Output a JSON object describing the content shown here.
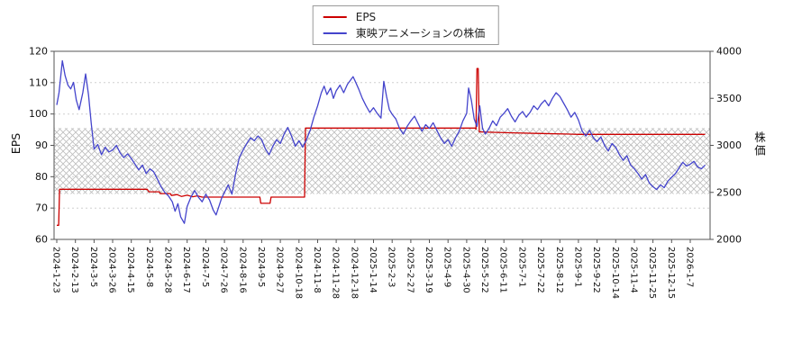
{
  "legend": {
    "items": [
      {
        "label": "EPS",
        "color": "#cc0000"
      },
      {
        "label": "東映アニメーションの株価",
        "color": "#4444cc"
      }
    ]
  },
  "axes": {
    "left_label": "EPS",
    "right_label": "株価",
    "left_ticks": [
      60,
      70,
      80,
      90,
      100,
      110,
      120
    ],
    "right_ticks": [
      2000,
      2500,
      3000,
      3500,
      4000
    ],
    "left_range": [
      60,
      120
    ],
    "right_range": [
      2000,
      4000
    ]
  },
  "chart_data": {
    "type": "line",
    "title": "",
    "legend_position": "top-center",
    "grid": true,
    "x_tick_labels": [
      "2024-1-23",
      "2024-2-13",
      "2024-3-5",
      "2024-3-26",
      "2024-4-15",
      "2024-5-8",
      "2024-5-28",
      "2024-6-17",
      "2024-7-5",
      "2024-7-26",
      "2024-8-16",
      "2024-9-5",
      "2024-9-27",
      "2024-10-18",
      "2024-11-8",
      "2024-11-28",
      "2024-12-18",
      "2025-1-14",
      "2025-2-3",
      "2025-2-27",
      "2025-3-19",
      "2025-4-9",
      "2025-4-30",
      "2025-5-22",
      "2025-6-11",
      "2025-7-1",
      "2025-7-22",
      "2025-8-12",
      "2025-9-1",
      "2025-9-22",
      "2025-10-14",
      "2025-11-4",
      "2025-11-25",
      "2025-12-15",
      "2026-1-7"
    ],
    "band": {
      "axis": "left",
      "from": 74.5,
      "to": 95.5,
      "style": "crosshatch"
    },
    "series": [
      {
        "name": "EPS",
        "axis": "left",
        "color": "#cc0000",
        "points": [
          [
            0,
            64.5
          ],
          [
            0.1,
            64.5
          ],
          [
            0.15,
            76
          ],
          [
            4.85,
            76
          ],
          [
            4.95,
            75.2
          ],
          [
            5.5,
            75.2
          ],
          [
            5.55,
            74.6
          ],
          [
            6.1,
            74.6
          ],
          [
            6.15,
            74
          ],
          [
            6.45,
            74.3
          ],
          [
            6.7,
            73.7
          ],
          [
            7,
            74.1
          ],
          [
            7.3,
            73.6
          ],
          [
            7.55,
            73.9
          ],
          [
            7.8,
            73.5
          ],
          [
            10.9,
            73.5
          ],
          [
            10.95,
            71.5
          ],
          [
            11.45,
            71.5
          ],
          [
            11.5,
            73.5
          ],
          [
            13.3,
            73.5
          ],
          [
            13.35,
            95.5
          ],
          [
            22.45,
            95.5
          ],
          [
            22.5,
            95.2
          ],
          [
            22.55,
            114.5
          ],
          [
            22.62,
            114.5
          ],
          [
            22.68,
            94.3
          ],
          [
            23.2,
            94.2
          ],
          [
            24.5,
            94
          ],
          [
            26,
            93.8
          ],
          [
            27.5,
            93.6
          ],
          [
            28,
            93.5
          ],
          [
            34.8,
            93.5
          ]
        ]
      },
      {
        "name": "東映アニメーションの株価",
        "axis": "right",
        "color": "#4444cc",
        "points": [
          [
            0,
            3430
          ],
          [
            0.12,
            3560
          ],
          [
            0.3,
            3900
          ],
          [
            0.45,
            3740
          ],
          [
            0.6,
            3640
          ],
          [
            0.75,
            3600
          ],
          [
            0.9,
            3670
          ],
          [
            1.05,
            3480
          ],
          [
            1.2,
            3380
          ],
          [
            1.4,
            3560
          ],
          [
            1.55,
            3760
          ],
          [
            1.7,
            3540
          ],
          [
            1.85,
            3230
          ],
          [
            2,
            2960
          ],
          [
            2.2,
            3010
          ],
          [
            2.4,
            2900
          ],
          [
            2.6,
            2980
          ],
          [
            2.8,
            2930
          ],
          [
            3,
            2950
          ],
          [
            3.2,
            3000
          ],
          [
            3.4,
            2920
          ],
          [
            3.6,
            2870
          ],
          [
            3.8,
            2910
          ],
          [
            4,
            2860
          ],
          [
            4.2,
            2800
          ],
          [
            4.4,
            2740
          ],
          [
            4.6,
            2790
          ],
          [
            4.8,
            2700
          ],
          [
            5,
            2750
          ],
          [
            5.2,
            2720
          ],
          [
            5.4,
            2640
          ],
          [
            5.6,
            2560
          ],
          [
            5.8,
            2500
          ],
          [
            6,
            2460
          ],
          [
            6.2,
            2400
          ],
          [
            6.35,
            2300
          ],
          [
            6.5,
            2380
          ],
          [
            6.65,
            2240
          ],
          [
            6.85,
            2170
          ],
          [
            7,
            2350
          ],
          [
            7.2,
            2450
          ],
          [
            7.4,
            2520
          ],
          [
            7.6,
            2450
          ],
          [
            7.8,
            2400
          ],
          [
            8,
            2480
          ],
          [
            8.2,
            2420
          ],
          [
            8.4,
            2310
          ],
          [
            8.55,
            2260
          ],
          [
            8.7,
            2350
          ],
          [
            8.85,
            2440
          ],
          [
            9,
            2500
          ],
          [
            9.2,
            2580
          ],
          [
            9.4,
            2480
          ],
          [
            9.6,
            2700
          ],
          [
            9.8,
            2870
          ],
          [
            10,
            2950
          ],
          [
            10.2,
            3020
          ],
          [
            10.4,
            3080
          ],
          [
            10.6,
            3050
          ],
          [
            10.8,
            3100
          ],
          [
            11,
            3060
          ],
          [
            11.2,
            2960
          ],
          [
            11.4,
            2900
          ],
          [
            11.6,
            2990
          ],
          [
            11.8,
            3060
          ],
          [
            12,
            3020
          ],
          [
            12.2,
            3120
          ],
          [
            12.4,
            3190
          ],
          [
            12.6,
            3100
          ],
          [
            12.8,
            2990
          ],
          [
            13,
            3050
          ],
          [
            13.2,
            2980
          ],
          [
            13.4,
            3060
          ],
          [
            13.6,
            3160
          ],
          [
            13.8,
            3300
          ],
          [
            14,
            3420
          ],
          [
            14.2,
            3560
          ],
          [
            14.35,
            3630
          ],
          [
            14.5,
            3540
          ],
          [
            14.7,
            3610
          ],
          [
            14.85,
            3500
          ],
          [
            15,
            3580
          ],
          [
            15.2,
            3640
          ],
          [
            15.4,
            3560
          ],
          [
            15.6,
            3650
          ],
          [
            15.9,
            3730
          ],
          [
            16,
            3690
          ],
          [
            16.2,
            3600
          ],
          [
            16.4,
            3500
          ],
          [
            16.6,
            3420
          ],
          [
            16.8,
            3350
          ],
          [
            17,
            3400
          ],
          [
            17.2,
            3340
          ],
          [
            17.4,
            3290
          ],
          [
            17.55,
            3680
          ],
          [
            17.7,
            3520
          ],
          [
            17.85,
            3380
          ],
          [
            18,
            3330
          ],
          [
            18.2,
            3280
          ],
          [
            18.4,
            3180
          ],
          [
            18.6,
            3120
          ],
          [
            18.8,
            3200
          ],
          [
            19,
            3260
          ],
          [
            19.2,
            3310
          ],
          [
            19.4,
            3230
          ],
          [
            19.6,
            3150
          ],
          [
            19.8,
            3220
          ],
          [
            20,
            3180
          ],
          [
            20.2,
            3240
          ],
          [
            20.4,
            3160
          ],
          [
            20.6,
            3080
          ],
          [
            20.8,
            3020
          ],
          [
            21,
            3060
          ],
          [
            21.2,
            2990
          ],
          [
            21.4,
            3080
          ],
          [
            21.6,
            3150
          ],
          [
            21.8,
            3260
          ],
          [
            22,
            3340
          ],
          [
            22.1,
            3610
          ],
          [
            22.25,
            3480
          ],
          [
            22.4,
            3280
          ],
          [
            22.55,
            3200
          ],
          [
            22.7,
            3420
          ],
          [
            22.85,
            3180
          ],
          [
            23,
            3120
          ],
          [
            23.2,
            3180
          ],
          [
            23.4,
            3260
          ],
          [
            23.6,
            3210
          ],
          [
            23.8,
            3300
          ],
          [
            24,
            3340
          ],
          [
            24.2,
            3390
          ],
          [
            24.4,
            3310
          ],
          [
            24.6,
            3250
          ],
          [
            24.8,
            3320
          ],
          [
            25,
            3360
          ],
          [
            25.2,
            3300
          ],
          [
            25.4,
            3350
          ],
          [
            25.6,
            3420
          ],
          [
            25.8,
            3380
          ],
          [
            26,
            3440
          ],
          [
            26.2,
            3480
          ],
          [
            26.4,
            3420
          ],
          [
            26.6,
            3500
          ],
          [
            26.8,
            3560
          ],
          [
            27,
            3520
          ],
          [
            27.2,
            3450
          ],
          [
            27.4,
            3380
          ],
          [
            27.6,
            3300
          ],
          [
            27.8,
            3350
          ],
          [
            28,
            3270
          ],
          [
            28.2,
            3150
          ],
          [
            28.4,
            3100
          ],
          [
            28.6,
            3160
          ],
          [
            28.8,
            3080
          ],
          [
            29,
            3040
          ],
          [
            29.2,
            3090
          ],
          [
            29.4,
            3000
          ],
          [
            29.6,
            2940
          ],
          [
            29.8,
            3020
          ],
          [
            30,
            2980
          ],
          [
            30.2,
            2900
          ],
          [
            30.4,
            2840
          ],
          [
            30.6,
            2890
          ],
          [
            30.8,
            2790
          ],
          [
            31,
            2750
          ],
          [
            31.2,
            2700
          ],
          [
            31.4,
            2640
          ],
          [
            31.6,
            2690
          ],
          [
            31.8,
            2600
          ],
          [
            32,
            2560
          ],
          [
            32.2,
            2530
          ],
          [
            32.4,
            2580
          ],
          [
            32.6,
            2550
          ],
          [
            32.8,
            2620
          ],
          [
            33,
            2660
          ],
          [
            33.2,
            2700
          ],
          [
            33.4,
            2760
          ],
          [
            33.6,
            2820
          ],
          [
            33.8,
            2780
          ],
          [
            34,
            2800
          ],
          [
            34.2,
            2830
          ],
          [
            34.4,
            2770
          ],
          [
            34.6,
            2750
          ],
          [
            34.8,
            2790
          ]
        ]
      }
    ]
  }
}
